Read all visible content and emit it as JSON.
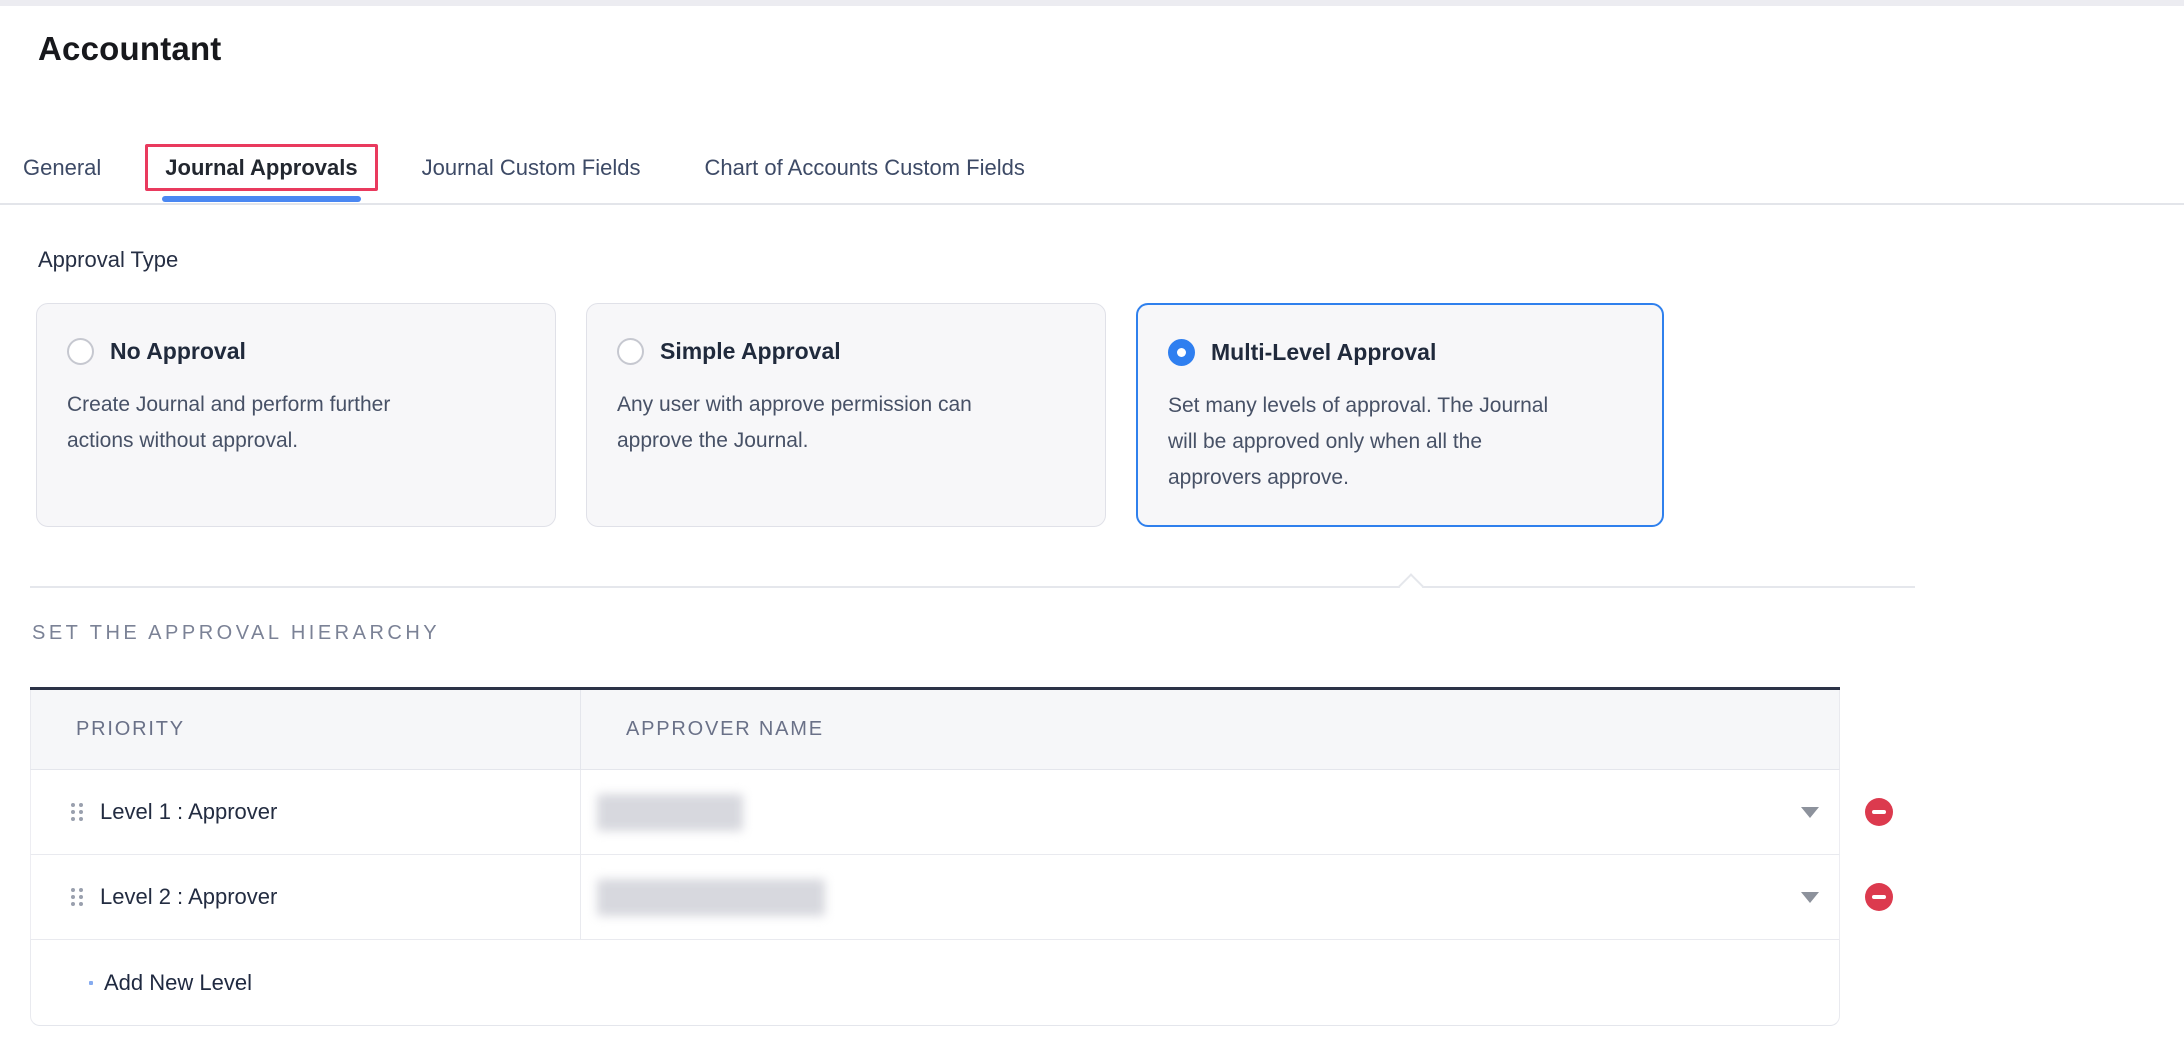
{
  "page": {
    "title": "Accountant"
  },
  "tabs": {
    "items": [
      {
        "label": "General"
      },
      {
        "label": "Journal Approvals"
      },
      {
        "label": "Journal Custom Fields"
      },
      {
        "label": "Chart of Accounts Custom Fields"
      }
    ],
    "active": "Journal Approvals"
  },
  "approval_type": {
    "label": "Approval Type",
    "options": [
      {
        "title": "No Approval",
        "description": "Create Journal and perform further\nactions without approval.",
        "selected": false
      },
      {
        "title": "Simple Approval",
        "description": "Any user with approve permission can\napprove the Journal.",
        "selected": false
      },
      {
        "title": "Multi-Level Approval",
        "description": "Set many levels of approval. The Journal\nwill be approved only when all the\napprovers approve.",
        "selected": true
      }
    ]
  },
  "hierarchy": {
    "heading": "SET THE APPROVAL HIERARCHY",
    "table": {
      "columns": [
        "PRIORITY",
        "APPROVER NAME"
      ],
      "rows": [
        {
          "priority": "Level 1 : Approver",
          "approver_redacted": true
        },
        {
          "priority": "Level 2 : Approver",
          "approver_redacted": true
        }
      ],
      "add_label": "Add New Level"
    }
  },
  "icons": {
    "drag_handle": "six-dot-grid",
    "dropdown_caret": "triangle-down",
    "remove": "minus-circle",
    "add_bullet": "dot"
  },
  "colors": {
    "accent_blue": "#2f80ed",
    "tab_underline_blue": "#4a87f2",
    "annotation_red": "#e93a5e",
    "remove_red": "#dc3a4e",
    "table_top_border": "#2c3347",
    "card_bg": "#f7f7f9"
  }
}
